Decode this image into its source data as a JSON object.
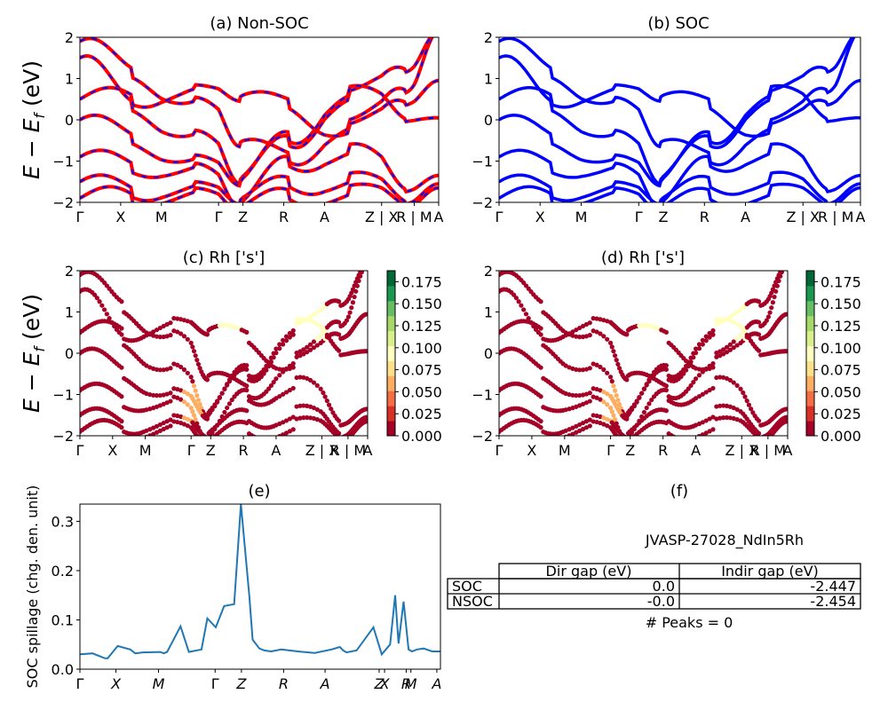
{
  "figure": {
    "band_ylabel": "E − E",
    "band_ylabel_sub": "f",
    "band_ylabel_unit": " (eV)"
  },
  "kpath": [
    "Γ",
    "X",
    "M",
    "Γ",
    "Z",
    "R",
    "A",
    "Z | X",
    "R | M",
    "A"
  ],
  "colors": {
    "nonsoc": "#ff0000",
    "soc": "#0000ff",
    "spillage": "#1f77b4",
    "cmap": [
      "#a50026",
      "#d73027",
      "#f46d43",
      "#fdae61",
      "#fee08b",
      "#ffffbf",
      "#d9ef8b",
      "#a6d96a",
      "#66bd63",
      "#1a9850",
      "#006837"
    ]
  },
  "chart_data": [
    {
      "id": "a",
      "type": "line",
      "title": "(a) Non-SOC",
      "ylim": [
        -2,
        2
      ],
      "yticks": [
        "−2",
        "−1",
        "0",
        "1",
        "2"
      ],
      "series": [
        {
          "values": [
            1.9,
            1.2,
            0.3,
            -0.4,
            -1.0,
            -0.2,
            0.9,
            1.9
          ]
        },
        {
          "values": [
            1.5,
            0.4,
            -0.5,
            -1.3,
            -0.6,
            0.5,
            1.4,
            1.9
          ]
        },
        {
          "values": [
            0.5,
            0.55,
            0.6,
            0.7,
            0.3,
            -0.3,
            0.6,
            0.7
          ]
        },
        {
          "values": [
            0.0,
            -0.4,
            -1.1,
            -1.35,
            -0.5,
            0.6,
            0.2,
            -0.2
          ]
        },
        {
          "values": [
            -0.9,
            -1.1,
            -1.3,
            -1.9,
            -1.1,
            -0.8,
            -1.5,
            -1.6
          ]
        },
        {
          "values": [
            -1.5,
            -1.7,
            -1.75,
            -1.8,
            -1.6,
            -1.5,
            -1.8,
            -1.8
          ]
        },
        {
          "values": [
            -1.9,
            -1.85,
            -1.9,
            -2.0,
            -1.9,
            -1.8,
            -1.9,
            -1.9
          ]
        }
      ]
    },
    {
      "id": "b",
      "type": "line",
      "title": "(b) SOC",
      "ylim": [
        -2,
        2
      ],
      "yticks": [
        "−2",
        "−1",
        "0",
        "1",
        "2"
      ],
      "series": [
        {
          "values": [
            1.9,
            1.2,
            0.3,
            -0.4,
            -1.0,
            -0.2,
            0.9,
            1.9
          ]
        },
        {
          "values": [
            1.5,
            0.4,
            -0.5,
            -1.3,
            -0.6,
            0.5,
            1.4,
            1.9
          ]
        },
        {
          "values": [
            0.5,
            0.55,
            0.6,
            0.7,
            0.3,
            -0.3,
            0.6,
            0.7
          ]
        },
        {
          "values": [
            0.0,
            -0.4,
            -1.1,
            -1.35,
            -0.5,
            0.6,
            0.2,
            -0.2
          ]
        },
        {
          "values": [
            -0.9,
            -1.1,
            -1.3,
            -1.9,
            -1.1,
            -0.8,
            -1.5,
            -1.6
          ]
        },
        {
          "values": [
            -1.5,
            -1.7,
            -1.75,
            -1.8,
            -1.6,
            -1.5,
            -1.8,
            -1.8
          ]
        },
        {
          "values": [
            -1.9,
            -1.85,
            -1.9,
            -2.0,
            -1.9,
            -1.8,
            -1.9,
            -1.9
          ]
        }
      ]
    },
    {
      "id": "c",
      "type": "scatter",
      "title": "(c)  Rh ['s']",
      "ylim": [
        -2,
        2
      ],
      "yticks": [
        "−2",
        "−1",
        "0",
        "1",
        "2"
      ],
      "colorbar": {
        "range": [
          0,
          0.1875
        ],
        "ticks": [
          "0.000",
          "0.025",
          "0.050",
          "0.075",
          "0.100",
          "0.125",
          "0.150",
          "0.175"
        ]
      },
      "series": [
        {
          "values": [
            1.9,
            1.2,
            0.3,
            -0.4,
            -1.0,
            -0.2,
            0.9,
            1.9
          ]
        },
        {
          "values": [
            1.5,
            0.4,
            -0.5,
            -1.3,
            -0.6,
            0.5,
            1.4,
            1.9
          ]
        },
        {
          "values": [
            0.5,
            0.55,
            0.6,
            0.7,
            0.3,
            -0.3,
            0.6,
            0.7
          ]
        },
        {
          "values": [
            0.0,
            -0.4,
            -1.1,
            -1.35,
            -0.5,
            0.6,
            0.2,
            -0.2
          ]
        },
        {
          "values": [
            -0.9,
            -1.1,
            -1.3,
            -1.9,
            -1.1,
            -0.8,
            -1.5,
            -1.6
          ]
        },
        {
          "values": [
            -1.5,
            -1.7,
            -1.75,
            -1.8,
            -1.6,
            -1.5,
            -1.8,
            -1.8
          ]
        },
        {
          "values": [
            -1.9,
            -1.85,
            -1.9,
            -2.0,
            -1.9,
            -1.8,
            -1.9,
            -1.9
          ]
        }
      ],
      "highlights": [
        {
          "k": 4.6,
          "e": 0.4,
          "w": 0.09
        },
        {
          "k": 6.8,
          "e": 0.8,
          "w": 0.09
        },
        {
          "k": 3.2,
          "e": -1.2,
          "w": 0.05
        }
      ]
    },
    {
      "id": "d",
      "type": "scatter",
      "title": "(d) Rh ['s']",
      "ylim": [
        -2,
        2
      ],
      "yticks": [
        "−2",
        "−1",
        "0",
        "1",
        "2"
      ],
      "colorbar": {
        "range": [
          0,
          0.1875
        ],
        "ticks": [
          "0.000",
          "0.025",
          "0.050",
          "0.075",
          "0.100",
          "0.125",
          "0.150",
          "0.175"
        ]
      },
      "series": [
        {
          "values": [
            1.9,
            1.2,
            0.3,
            -0.4,
            -1.0,
            -0.2,
            0.9,
            1.9
          ]
        },
        {
          "values": [
            1.5,
            0.4,
            -0.5,
            -1.3,
            -0.6,
            0.5,
            1.4,
            1.9
          ]
        },
        {
          "values": [
            0.5,
            0.55,
            0.6,
            0.7,
            0.3,
            -0.3,
            0.6,
            0.7
          ]
        },
        {
          "values": [
            0.0,
            -0.4,
            -1.1,
            -1.35,
            -0.5,
            0.6,
            0.2,
            -0.2
          ]
        },
        {
          "values": [
            -0.9,
            -1.1,
            -1.3,
            -1.9,
            -1.1,
            -0.8,
            -1.5,
            -1.6
          ]
        },
        {
          "values": [
            -1.5,
            -1.7,
            -1.75,
            -1.8,
            -1.6,
            -1.5,
            -1.8,
            -1.8
          ]
        },
        {
          "values": [
            -1.9,
            -1.85,
            -1.9,
            -2.0,
            -1.9,
            -1.8,
            -1.9,
            -1.9
          ]
        }
      ],
      "highlights": [
        {
          "k": 4.6,
          "e": 0.4,
          "w": 0.09
        },
        {
          "k": 6.8,
          "e": 0.8,
          "w": 0.09
        },
        {
          "k": 3.2,
          "e": -1.2,
          "w": 0.05
        }
      ]
    },
    {
      "id": "e",
      "type": "line",
      "title": "(e)",
      "ylabel": "SOC spillage (chg. den. unit)",
      "ylim": [
        0,
        0.335
      ],
      "yticks": [
        "0.0",
        "0.1",
        "0.2",
        "0.3"
      ],
      "xticks": [
        "Γ",
        "X",
        "M",
        "Γ",
        "Z",
        "R",
        "A",
        "Z",
        "X",
        "R",
        "M",
        "A"
      ],
      "x": [
        0,
        0.15,
        0.3,
        0.33,
        0.45,
        0.6,
        0.66,
        0.75,
        0.96,
        1.0,
        1.04,
        1.2,
        1.3,
        1.45,
        1.52,
        1.62,
        1.72,
        1.84,
        1.92,
        2.02,
        2.06,
        2.14,
        2.2,
        2.28,
        2.4,
        2.6,
        2.8,
        3.0,
        3.1,
        3.14,
        3.18,
        3.3,
        3.5,
        3.6,
        3.7,
        3.76,
        3.8,
        3.86,
        3.92,
        3.96,
        4.02,
        4.1,
        4.2,
        4.3
      ],
      "values": [
        0.03,
        0.032,
        0.022,
        0.022,
        0.047,
        0.04,
        0.032,
        0.034,
        0.035,
        0.032,
        0.035,
        0.087,
        0.035,
        0.04,
        0.103,
        0.085,
        0.128,
        0.132,
        0.335,
        0.15,
        0.06,
        0.042,
        0.038,
        0.036,
        0.04,
        0.036,
        0.033,
        0.04,
        0.045,
        0.038,
        0.034,
        0.038,
        0.085,
        0.03,
        0.05,
        0.15,
        0.052,
        0.137,
        0.04,
        0.036,
        0.04,
        0.042,
        0.036,
        0.036
      ]
    }
  ],
  "panel_f": {
    "title": "(f)",
    "system": "JVASP-27028_NdIn5Rh",
    "headers": [
      "Dir gap (eV)",
      "Indir gap (eV)"
    ],
    "rows": [
      {
        "label": "SOC",
        "dir": "0.0",
        "indir": "-2.447"
      },
      {
        "label": "NSOC",
        "dir": "-0.0",
        "indir": "-2.454"
      }
    ],
    "peaks": "# Peaks = 0"
  }
}
